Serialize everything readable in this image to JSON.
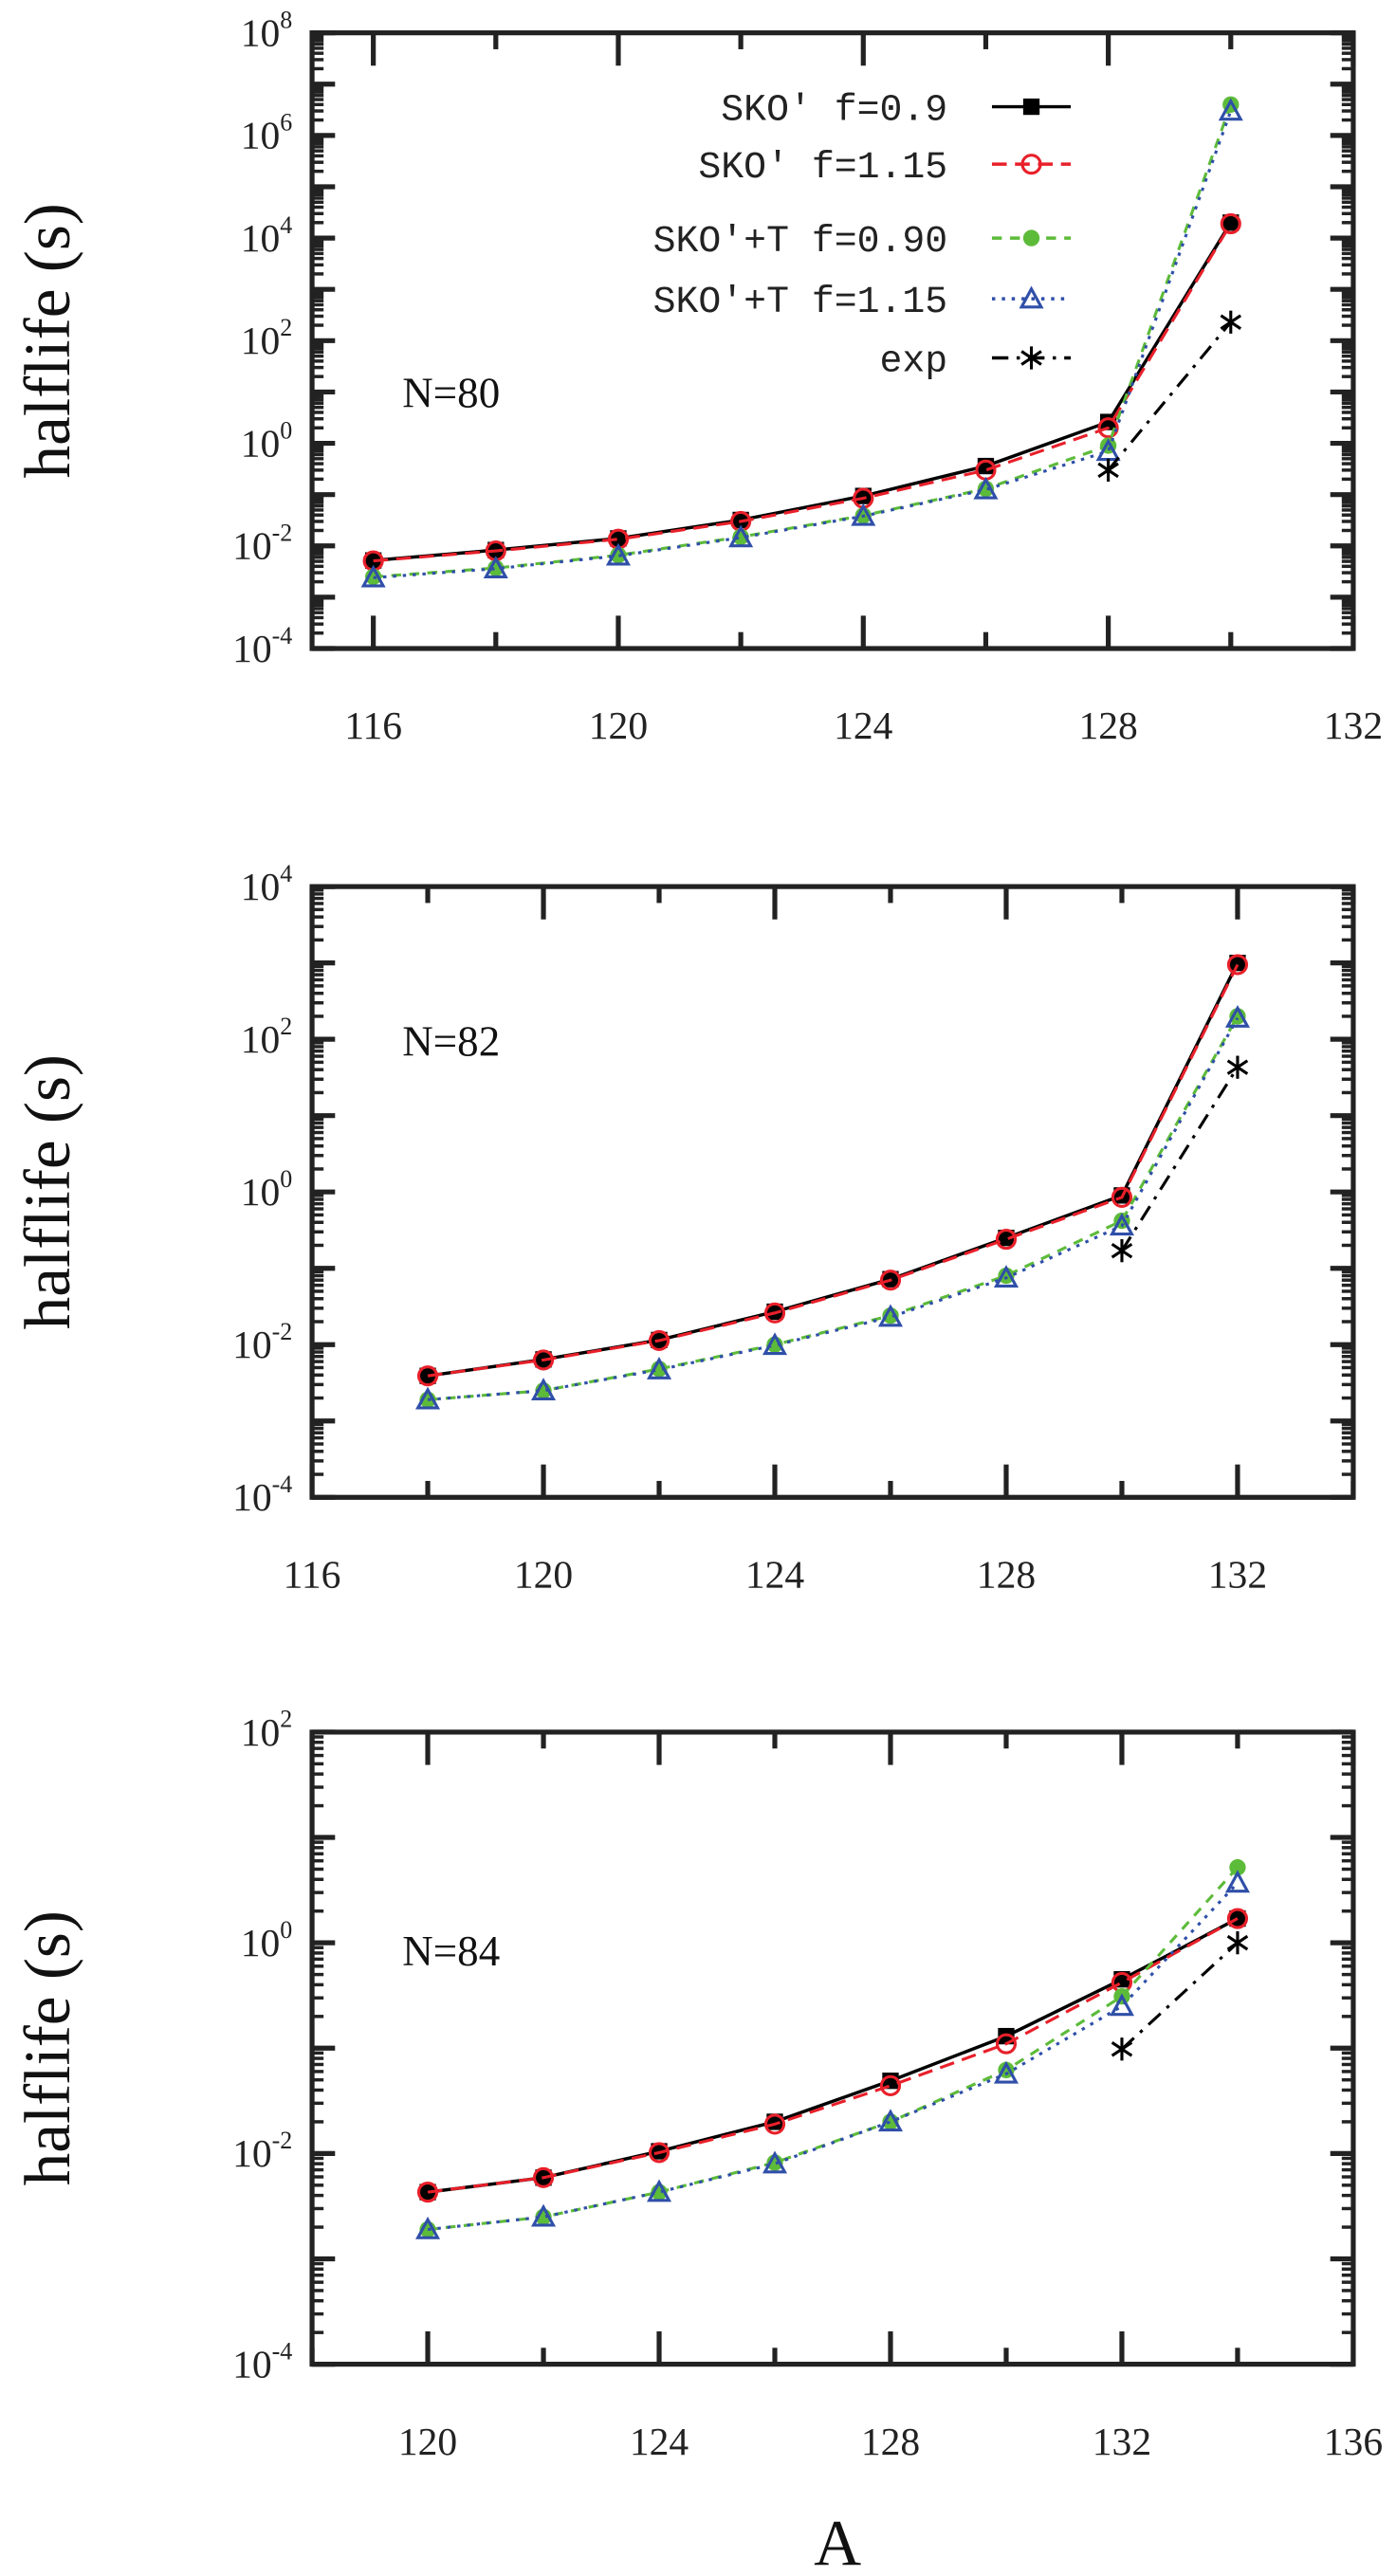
{
  "chart_data": [
    {
      "type": "line",
      "annotation": "N=80",
      "xlabel": "",
      "ylabel": "halflife (s)",
      "xlim": [
        115,
        132
      ],
      "xticks": [
        116,
        120,
        124,
        128,
        132
      ],
      "yscale": "log",
      "ylim": [
        0.0001,
        100000000.0
      ],
      "ytick_exponents": [
        -4,
        -2,
        0,
        2,
        4,
        6,
        8
      ],
      "legend_position": "top-right",
      "x": [
        116,
        118,
        120,
        122,
        124,
        126,
        128,
        130
      ],
      "series": [
        {
          "name": "SKO′  f=0.9",
          "values": [
            0.0052,
            0.0083,
            0.014,
            0.032,
            0.094,
            0.36,
            2.6,
            20000
          ]
        },
        {
          "name": "SKO′  f=1.15",
          "values": [
            0.0051,
            0.008,
            0.0135,
            0.03,
            0.085,
            0.3,
            2.0,
            19000
          ]
        },
        {
          "name": "SKO′+T f=0.90",
          "values": [
            0.0025,
            0.0037,
            0.0066,
            0.015,
            0.039,
            0.13,
            0.9,
            4000000
          ]
        },
        {
          "name": "SKO′+T f=1.15",
          "values": [
            0.0024,
            0.0036,
            0.0064,
            0.0145,
            0.038,
            0.125,
            0.7,
            3000000
          ]
        },
        {
          "name": "exp",
          "x": [
            128,
            130
          ],
          "values": [
            0.3,
            230
          ]
        }
      ]
    },
    {
      "type": "line",
      "annotation": "N=82",
      "xlabel": "",
      "ylabel": "halflife (s)",
      "xlim": [
        116,
        134
      ],
      "xticks": [
        116,
        120,
        124,
        128,
        132
      ],
      "yscale": "log",
      "ylim": [
        0.0001,
        10000.0
      ],
      "ytick_exponents": [
        -4,
        -2,
        0,
        2,
        4
      ],
      "x": [
        118,
        120,
        122,
        124,
        126,
        128,
        130,
        132
      ],
      "series": [
        {
          "name": "SKO′  f=0.9",
          "values": [
            0.0039,
            0.0064,
            0.0115,
            0.027,
            0.072,
            0.25,
            0.9,
            1000
          ]
        },
        {
          "name": "SKO′  f=1.15",
          "values": [
            0.0039,
            0.0063,
            0.0113,
            0.026,
            0.07,
            0.24,
            0.85,
            950
          ]
        },
        {
          "name": "SKO′+T f=0.90",
          "values": [
            0.0019,
            0.0025,
            0.0048,
            0.01,
            0.024,
            0.08,
            0.42,
            200
          ]
        },
        {
          "name": "SKO′+T f=1.15",
          "values": [
            0.0019,
            0.0025,
            0.0047,
            0.0098,
            0.023,
            0.075,
            0.36,
            190
          ]
        },
        {
          "name": "exp",
          "x": [
            130,
            132
          ],
          "values": [
            0.17,
            43
          ]
        }
      ]
    },
    {
      "type": "line",
      "annotation": "N=84",
      "xlabel": "A",
      "ylabel": "halflife (s)",
      "xlim": [
        118,
        136
      ],
      "xticks": [
        120,
        124,
        128,
        132,
        136
      ],
      "yscale": "log",
      "ylim": [
        0.0001,
        100.0
      ],
      "ytick_exponents": [
        -4,
        -2,
        0,
        2
      ],
      "x": [
        120,
        122,
        124,
        126,
        128,
        130,
        132,
        134
      ],
      "series": [
        {
          "name": "SKO′  f=0.9",
          "values": [
            0.0043,
            0.0059,
            0.0105,
            0.02,
            0.049,
            0.13,
            0.45,
            1.7
          ]
        },
        {
          "name": "SKO′  f=1.15",
          "values": [
            0.0043,
            0.0059,
            0.0102,
            0.019,
            0.044,
            0.11,
            0.42,
            1.7
          ]
        },
        {
          "name": "SKO′+T f=0.90",
          "values": [
            0.0019,
            0.0025,
            0.0043,
            0.0082,
            0.02,
            0.062,
            0.31,
            5.2
          ]
        },
        {
          "name": "SKO′+T f=1.15",
          "values": [
            0.0019,
            0.0025,
            0.0043,
            0.008,
            0.02,
            0.057,
            0.25,
            3.7
          ]
        },
        {
          "name": "exp",
          "x": [
            132,
            134
          ],
          "values": [
            0.098,
            1.0
          ]
        }
      ]
    }
  ],
  "legend": [
    "SKO′  f=0.9",
    "SKO′  f=1.15",
    "SKO′+T f=0.90",
    "SKO′+T f=1.15",
    "exp"
  ],
  "colors": [
    "#000000",
    "#e8202a",
    "#5dbb3a",
    "#2f4fa8",
    "#000000"
  ],
  "shared_xlabel": "A"
}
